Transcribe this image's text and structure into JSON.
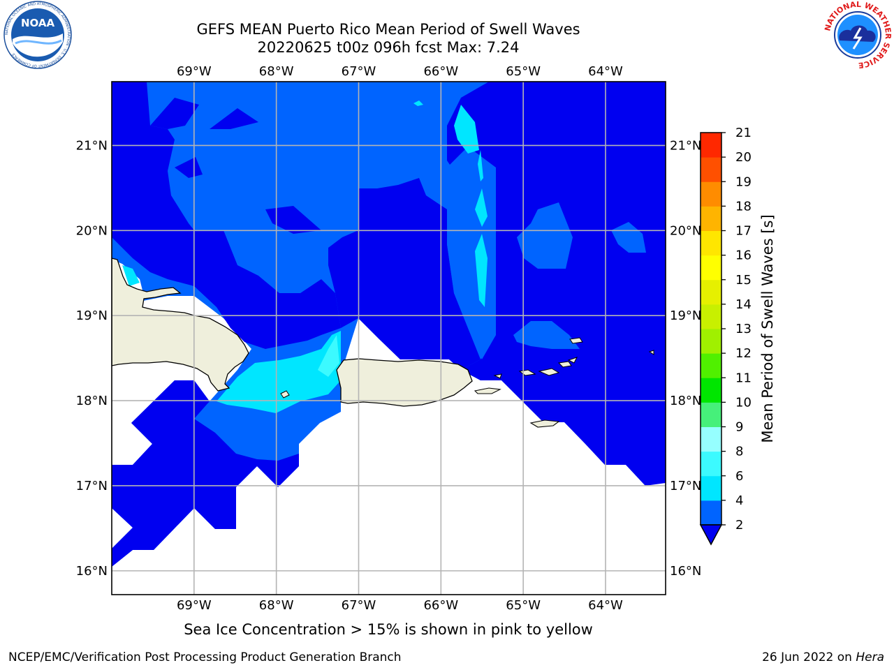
{
  "title": {
    "line1": "GEFS MEAN Puerto Rico Mean Period of Swell Waves",
    "line2": "20220625 t00z 096h fcst   Max: 7.24"
  },
  "logos": {
    "noaa_text": "NOAA",
    "noaa_ring": "NATIONAL OCEANIC AND ATMOSPHERIC ADMINISTRATION · U.S. DEPARTMENT OF COMMERCE",
    "nws_ring": "NATIONAL WEATHER SERVICE"
  },
  "map": {
    "lon_labels": [
      "69°W",
      "68°W",
      "67°W",
      "66°W",
      "65°W",
      "64°W"
    ],
    "lon_values": [
      -69,
      -68,
      -67,
      -66,
      -65,
      -64
    ],
    "lat_labels": [
      "21°N",
      "20°N",
      "19°N",
      "18°N",
      "17°N",
      "16°N"
    ],
    "lat_values": [
      21,
      20,
      19,
      18,
      17,
      16
    ],
    "lon_range": [
      -70,
      -63.27
    ],
    "lat_range": [
      15.72,
      21.75
    ],
    "colors": {
      "land": "#efefdc",
      "coast": "#000000",
      "grid": "#b4b4b4",
      "no_data": "#ffffff"
    }
  },
  "colorbar": {
    "label": "Mean Period of Swell Waves [s]",
    "ticks": [
      "2",
      "4",
      "6",
      "8",
      "9",
      "10",
      "11",
      "12",
      "13",
      "14",
      "15",
      "16",
      "17",
      "18",
      "19",
      "20",
      "21"
    ],
    "colors": [
      "#0064ff",
      "#00e6ff",
      "#3cfaff",
      "#96ffff",
      "#46f07a",
      "#00e600",
      "#50f000",
      "#a0f000",
      "#c8f000",
      "#e6f000",
      "#ffff00",
      "#ffe600",
      "#ffb400",
      "#ff8c00",
      "#ff5000",
      "#ff2800"
    ],
    "under_color": "#0000f0"
  },
  "footer": {
    "note": "Sea Ice Concentration > 15% is shown in pink to yellow",
    "left": "NCEP/EMC/Verification Post Processing Product Generation Branch",
    "right_date": "26 Jun 2022 on ",
    "right_host": "Hera"
  }
}
